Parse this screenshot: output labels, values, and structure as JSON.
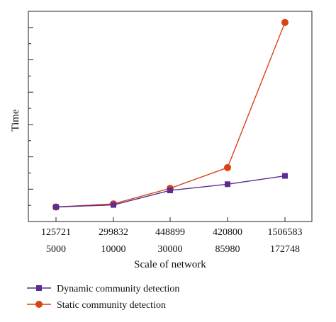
{
  "chart_data": {
    "type": "line",
    "title": "",
    "xlabel": "Scale of network",
    "ylabel": "Time",
    "categories": [
      [
        "125721",
        "5000"
      ],
      [
        "299832",
        "10000"
      ],
      [
        "448899",
        "30000"
      ],
      [
        "420800",
        "85980"
      ],
      [
        "1506583",
        "172748"
      ]
    ],
    "y_tick_labels_shown": false,
    "ylim": [
      0,
      1
    ],
    "grid": false,
    "legend_position": "bottom",
    "series": [
      {
        "name": "Dynamic community detection",
        "values": [
          0.07,
          0.08,
          0.15,
          0.18,
          0.22
        ],
        "color": "#5b2c91",
        "marker": "square"
      },
      {
        "name": "Static community detection",
        "values": [
          0.07,
          0.085,
          0.16,
          0.26,
          0.96
        ],
        "color": "#d84315",
        "marker": "circle"
      }
    ]
  }
}
